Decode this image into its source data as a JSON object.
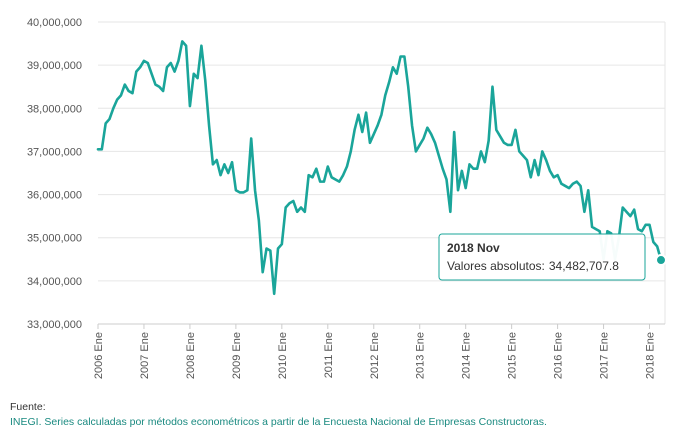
{
  "chart_data": {
    "type": "line",
    "title": "",
    "xlabel": "",
    "ylabel": "",
    "ylim": [
      33000000,
      40000000
    ],
    "yticks": [
      "33,000,000",
      "34,000,000",
      "35,000,000",
      "36,000,000",
      "37,000,000",
      "38,000,000",
      "39,000,000",
      "40,000,000"
    ],
    "xticks": [
      "2006 Ene",
      "2007 Ene",
      "2008 Ene",
      "2009 Ene",
      "2010 Ene",
      "2011 Ene",
      "2012 Ene",
      "2013 Ene",
      "2014 Ene",
      "2015 Ene",
      "2016 Ene",
      "2017 Ene",
      "2018 Ene"
    ],
    "x_start": "2006 Ene",
    "x_end": "2018 Nov",
    "grid": "horizontal",
    "legend": "none",
    "line_color": "#1aa59a",
    "series": [
      {
        "values": [
          37050000,
          37050000,
          37650000,
          37750000,
          38000000,
          38200000,
          38300000,
          38550000,
          38400000,
          38350000,
          38850000,
          38950000,
          39100000,
          39050000,
          38800000,
          38550000,
          38500000,
          38400000,
          38950000,
          39050000,
          38850000,
          39100000,
          39550000,
          39450000,
          38050000,
          38800000,
          38700000,
          39450000,
          38650000,
          37600000,
          36700000,
          36800000,
          36450000,
          36700000,
          36500000,
          36750000,
          36100000,
          36050000,
          36050000,
          36100000,
          37300000,
          36100000,
          35400000,
          34200000,
          34750000,
          34700000,
          33700000,
          34750000,
          34850000,
          35700000,
          35800000,
          35850000,
          35600000,
          35700000,
          35600000,
          36450000,
          36400000,
          36600000,
          36300000,
          36300000,
          36650000,
          36400000,
          36350000,
          36300000,
          36450000,
          36650000,
          37000000,
          37500000,
          37850000,
          37450000,
          37900000,
          37200000,
          37400000,
          37600000,
          37850000,
          38300000,
          38600000,
          38950000,
          38800000,
          39200000,
          39200000,
          38500000,
          37600000,
          37000000,
          37150000,
          37300000,
          37550000,
          37400000,
          37200000,
          36900000,
          36600000,
          36350000,
          35600000,
          37450000,
          36100000,
          36550000,
          36150000,
          36700000,
          36600000,
          36600000,
          37000000,
          36750000,
          37250000,
          38500000,
          37500000,
          37350000,
          37200000,
          37150000,
          37150000,
          37500000,
          37000000,
          36900000,
          36800000,
          36400000,
          36800000,
          36450000,
          37000000,
          36800000,
          36550000,
          36400000,
          36450000,
          36250000,
          36200000,
          36150000,
          36250000,
          36300000,
          36200000,
          35600000,
          36100000,
          35250000,
          35200000,
          35150000,
          34500000,
          35150000,
          35100000,
          34500000,
          35000000,
          35700000,
          35600000,
          35500000,
          35650000,
          35200000,
          35150000,
          35300000,
          35300000,
          34900000,
          34800000,
          34482707.8
        ]
      }
    ],
    "tooltip": {
      "title": "2018 Nov",
      "label": "Valores absolutos:",
      "value": "34,482,707.8"
    }
  },
  "footer": {
    "label": "Fuente:",
    "source": "INEGI. Series calculadas por métodos econométricos a partir de la Encuesta Nacional de Empresas Constructoras."
  }
}
